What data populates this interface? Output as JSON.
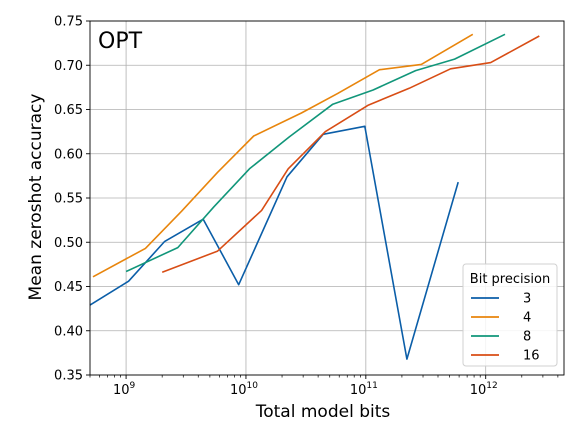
{
  "chart_data": {
    "type": "line",
    "title": "OPT",
    "xlabel": "Total model bits",
    "ylabel": "Mean zeroshot accuracy",
    "xscale": "log",
    "xlim": [
      500000000.0,
      4500000000000.0
    ],
    "ylim": [
      0.35,
      0.75
    ],
    "grid": true,
    "x_ticks": [
      {
        "value": 1000000000.0,
        "label": "10",
        "exp": "9"
      },
      {
        "value": 10000000000.0,
        "label": "10",
        "exp": "10"
      },
      {
        "value": 100000000000.0,
        "label": "10",
        "exp": "11"
      },
      {
        "value": 1000000000000.0,
        "label": "10",
        "exp": "12"
      }
    ],
    "y_ticks": [
      {
        "value": 0.35,
        "label": "0.35"
      },
      {
        "value": 0.4,
        "label": "0.40"
      },
      {
        "value": 0.45,
        "label": "0.45"
      },
      {
        "value": 0.5,
        "label": "0.50"
      },
      {
        "value": 0.55,
        "label": "0.55"
      },
      {
        "value": 0.6,
        "label": "0.60"
      },
      {
        "value": 0.65,
        "label": "0.65"
      },
      {
        "value": 0.7,
        "label": "0.70"
      },
      {
        "value": 0.75,
        "label": "0.75"
      }
    ],
    "legend": {
      "title": "Bit precision",
      "placement": "lower-right"
    },
    "series": [
      {
        "name": "3",
        "color": "#0b5ea8",
        "x": [
          500000000.0,
          1050000000.0,
          2100000000.0,
          4400000000.0,
          8700000000.0,
          22000000000.0,
          44000000000.0,
          98000000000.0,
          220000000000.0,
          590000000000.0
        ],
        "y": [
          0.429,
          0.456,
          0.501,
          0.526,
          0.452,
          0.574,
          0.622,
          0.631,
          0.368,
          0.568
        ]
      },
      {
        "name": "4",
        "color": "#e8850c",
        "x": [
          530000000.0,
          1450000000.0,
          2900000000.0,
          5800000000.0,
          11600000000.0,
          29000000000.0,
          58000000000.0,
          130000000000.0,
          290000000000.0,
          780000000000.0
        ],
        "y": [
          0.461,
          0.493,
          0.535,
          0.579,
          0.62,
          0.646,
          0.668,
          0.695,
          0.701,
          0.735
        ]
      },
      {
        "name": "8",
        "color": "#11967a",
        "x": [
          1000000000.0,
          2700000000.0,
          5400000000.0,
          10700000000.0,
          23000000000.0,
          53000000000.0,
          115000000000.0,
          260000000000.0,
          550000000000.0,
          1450000000000.0
        ],
        "y": [
          0.467,
          0.494,
          0.54,
          0.583,
          0.619,
          0.656,
          0.672,
          0.694,
          0.707,
          0.735
        ]
      },
      {
        "name": "16",
        "color": "#d84d15",
        "x": [
          2000000000.0,
          5800000000.0,
          13500000000.0,
          22500000000.0,
          46000000000.0,
          105000000000.0,
          230000000000.0,
          510000000000.0,
          1100000000000.0,
          2800000000000.0
        ],
        "y": [
          0.466,
          0.49,
          0.536,
          0.583,
          0.625,
          0.655,
          0.674,
          0.696,
          0.703,
          0.733
        ]
      }
    ]
  }
}
